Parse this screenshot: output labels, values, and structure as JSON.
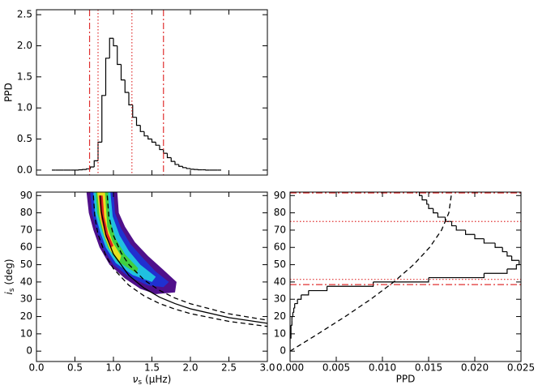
{
  "chart_data": [
    {
      "type": "histogram",
      "orientation": "vertical",
      "color": "#000000",
      "xlim": [
        0,
        3
      ],
      "ylim": [
        -0.08,
        2.58
      ],
      "show_xticklabels": false,
      "xticks": [
        0,
        0.5,
        1,
        1.5,
        2,
        2.5,
        3
      ],
      "yticks": [
        {
          "value": 0,
          "label": "0.0"
        },
        {
          "value": 0.5,
          "label": "0.5"
        },
        {
          "value": 1,
          "label": "1.0"
        },
        {
          "value": 1.5,
          "label": "1.5"
        },
        {
          "value": 2,
          "label": "2.0"
        },
        {
          "value": 2.5,
          "label": "2.5"
        }
      ],
      "ylabel": "PPD",
      "bins": [
        0.2,
        0.25,
        0.3,
        0.35,
        0.4,
        0.45,
        0.5,
        0.55,
        0.6,
        0.65,
        0.7,
        0.75,
        0.8,
        0.85,
        0.9,
        0.95,
        1.0,
        1.05,
        1.1,
        1.15,
        1.2,
        1.25,
        1.3,
        1.35,
        1.4,
        1.45,
        1.5,
        1.55,
        1.6,
        1.65,
        1.7,
        1.75,
        1.8,
        1.85,
        1.9,
        1.95,
        2.0,
        2.05,
        2.1,
        2.15,
        2.2,
        2.25,
        2.3,
        2.35,
        2.4
      ],
      "values": [
        0,
        0,
        0,
        0,
        0,
        0,
        0,
        0.005,
        0.01,
        0.02,
        0.05,
        0.15,
        0.45,
        1.2,
        1.8,
        2.12,
        2.0,
        1.7,
        1.45,
        1.25,
        1.05,
        0.85,
        0.72,
        0.62,
        0.55,
        0.5,
        0.45,
        0.4,
        0.33,
        0.27,
        0.2,
        0.14,
        0.09,
        0.06,
        0.04,
        0.025,
        0.015,
        0.01,
        0.005,
        0.005,
        0,
        0,
        0,
        0
      ],
      "vlines": [
        {
          "x": 0.69,
          "style": "dashdot",
          "color": "#e03030"
        },
        {
          "x": 0.8,
          "style": "dotted",
          "color": "#e03030"
        },
        {
          "x": 1.24,
          "style": "dotted",
          "color": "#e03030"
        },
        {
          "x": 1.65,
          "style": "dashdot",
          "color": "#e03030"
        }
      ]
    },
    {
      "type": "density",
      "xlim": [
        0,
        3
      ],
      "ylim": [
        -6,
        92
      ],
      "xticks": [
        {
          "value": 0,
          "label": "0.0"
        },
        {
          "value": 0.5,
          "label": "0.5"
        },
        {
          "value": 1,
          "label": "1.0"
        },
        {
          "value": 1.5,
          "label": "1.5"
        },
        {
          "value": 2,
          "label": "2.0"
        },
        {
          "value": 2.5,
          "label": "2.5"
        },
        {
          "value": 3,
          "label": "3.0"
        }
      ],
      "yticks": [
        0,
        10,
        20,
        30,
        40,
        50,
        60,
        70,
        80,
        90
      ],
      "xlabel": [
        "ν",
        "s",
        "(μHz)"
      ],
      "ylabel": [
        "i",
        "s",
        "(deg)"
      ],
      "contours": [
        {
          "color": "#50108a",
          "x": [
            0.65,
            0.68,
            0.74,
            0.82,
            0.95,
            1.15,
            1.35,
            1.55,
            1.8,
            1.82,
            1.65,
            1.45,
            1.28,
            1.15,
            1.07,
            1.05
          ],
          "y": [
            92,
            80,
            70,
            60,
            50,
            42,
            36,
            33,
            34,
            40,
            47,
            55,
            63,
            72,
            80,
            92
          ]
        },
        {
          "color": "#2030d0",
          "x": [
            0.7,
            0.72,
            0.78,
            0.86,
            1.0,
            1.2,
            1.45,
            1.65,
            1.72,
            1.55,
            1.38,
            1.22,
            1.1,
            1.02,
            1.0
          ],
          "y": [
            92,
            80,
            70,
            60,
            50,
            43,
            38,
            37,
            40,
            46,
            54,
            62,
            71,
            80,
            92
          ]
        },
        {
          "color": "#20c0e0",
          "x": [
            0.74,
            0.76,
            0.82,
            0.9,
            1.03,
            1.25,
            1.5,
            1.55,
            1.35,
            1.2,
            1.08,
            0.99,
            0.96
          ],
          "y": [
            92,
            80,
            70,
            60,
            51,
            44,
            40,
            43,
            50,
            58,
            67,
            78,
            92
          ]
        },
        {
          "color": "#40d040",
          "x": [
            0.77,
            0.79,
            0.85,
            0.93,
            1.05,
            1.3,
            1.32,
            1.15,
            1.03,
            0.95,
            0.93
          ],
          "y": [
            92,
            80,
            70,
            60,
            52,
            45,
            48,
            56,
            65,
            76,
            92
          ]
        },
        {
          "color": "#e8e020",
          "x": [
            0.79,
            0.82,
            0.88,
            0.96,
            1.08,
            1.1,
            0.99,
            0.92,
            0.89
          ],
          "y": [
            92,
            78,
            67,
            58,
            52,
            55,
            63,
            72,
            92
          ]
        },
        {
          "color": "#e02020",
          "x": [
            0.81,
            0.84,
            0.9,
            0.97,
            1.0,
            0.93,
            0.88,
            0.86
          ],
          "y": [
            90,
            77,
            66,
            60,
            61,
            68,
            78,
            90
          ]
        }
      ],
      "series": [
        {
          "style": "solid",
          "color": "#000000",
          "x": [
            0.83,
            0.84,
            0.9,
            1.0,
            1.2,
            1.4,
            1.6,
            1.8,
            2.0,
            2.5,
            3.0
          ],
          "y": [
            90,
            81.2,
            67.3,
            56.1,
            43.8,
            36.4,
            31.2,
            27.5,
            24.5,
            19.4,
            16.1
          ]
        },
        {
          "style": "dashed",
          "color": "#000000",
          "x": [
            0.74,
            0.76,
            0.8,
            0.9,
            1.0,
            1.2,
            1.4,
            1.6,
            1.8,
            2.0,
            2.5,
            3.0
          ],
          "y": [
            90,
            76.8,
            67.7,
            55.3,
            47.7,
            38.1,
            31.9,
            27.5,
            24.3,
            21.7,
            17.2,
            14.3
          ]
        },
        {
          "style": "dashed",
          "color": "#000000",
          "x": [
            0.92,
            0.94,
            1.0,
            1.1,
            1.2,
            1.4,
            1.6,
            1.8,
            2.0,
            2.5,
            3.0
          ],
          "y": [
            90,
            78.2,
            66.9,
            56.8,
            50.1,
            41.1,
            35.1,
            30.7,
            27.4,
            21.6,
            17.9
          ]
        }
      ]
    },
    {
      "type": "histogram",
      "orientation": "horizontal",
      "color": "#000000",
      "xlim": [
        0,
        0.025
      ],
      "ylim": [
        -6,
        92
      ],
      "xticks": [
        {
          "value": 0,
          "label": "0.000"
        },
        {
          "value": 0.005,
          "label": "0.005"
        },
        {
          "value": 0.01,
          "label": "0.010"
        },
        {
          "value": 0.015,
          "label": "0.015"
        },
        {
          "value": 0.02,
          "label": "0.020"
        },
        {
          "value": 0.025,
          "label": "0.025"
        }
      ],
      "yticks": [
        0,
        10,
        20,
        30,
        40,
        50,
        60,
        70,
        80,
        90
      ],
      "xlabel": "PPD",
      "bins": [
        0,
        2.5,
        5,
        7.5,
        10,
        12.5,
        15,
        17.5,
        20,
        22.5,
        25,
        27.5,
        30,
        32.5,
        35,
        37.5,
        40,
        42.5,
        45,
        47.5,
        50,
        52.5,
        55,
        57.5,
        60,
        62.5,
        65,
        67.5,
        70,
        72.5,
        75,
        77.5,
        80,
        82.5,
        85,
        87.5,
        90,
        92.5
      ],
      "values": [
        0,
        0,
        0,
        0.0001,
        0.0001,
        0.0001,
        0.0002,
        0.0002,
        0.0003,
        0.0004,
        0.0005,
        0.0008,
        0.0012,
        0.002,
        0.004,
        0.009,
        0.015,
        0.021,
        0.0235,
        0.0245,
        0.0248,
        0.024,
        0.0235,
        0.023,
        0.0222,
        0.021,
        0.02,
        0.019,
        0.018,
        0.0175,
        0.0168,
        0.016,
        0.0155,
        0.015,
        0.0148,
        0.0143,
        0.014
      ],
      "series": [
        {
          "style": "dashed",
          "color": "#000000",
          "x": [
            0,
            0.00303,
            0.00597,
            0.00873,
            0.01122,
            0.01337,
            0.01511,
            0.0164,
            0.01719,
            0.01745
          ],
          "y": [
            0,
            10,
            20,
            30,
            40,
            50,
            60,
            70,
            80,
            90
          ]
        }
      ],
      "hlines": [
        {
          "y": 38.5,
          "style": "dashdot",
          "color": "#e03030"
        },
        {
          "y": 41.5,
          "style": "dotted",
          "color": "#e03030"
        },
        {
          "y": 75,
          "style": "dotted",
          "color": "#e03030"
        },
        {
          "y": 91.5,
          "style": "dashdot",
          "color": "#e03030"
        }
      ]
    }
  ]
}
